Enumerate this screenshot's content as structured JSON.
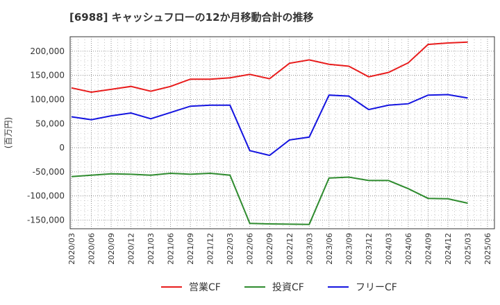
{
  "chart_data": {
    "type": "line",
    "title": "[6988]  キャッシュフローの12か月移動合計の推移",
    "ylabel": "(百万円)",
    "xlabel": "",
    "ylim": [
      -168000,
      230000
    ],
    "yticks": [
      200000,
      150000,
      100000,
      50000,
      0,
      -50000,
      -100000,
      -150000
    ],
    "ytick_labels": [
      "200,000",
      "150,000",
      "100,000",
      "50,000",
      "0",
      "-50,000",
      "-100,000",
      "-150,000"
    ],
    "categories": [
      "2020/03",
      "2020/06",
      "2020/09",
      "2020/12",
      "2021/03",
      "2021/06",
      "2021/09",
      "2021/12",
      "2022/03",
      "2022/06",
      "2022/09",
      "2022/12",
      "2023/03",
      "2023/06",
      "2023/09",
      "2023/12",
      "2024/03",
      "2024/06",
      "2024/09",
      "2024/12",
      "2025/03",
      "2025/06"
    ],
    "grid": true,
    "legend_position": "bottom-center",
    "series": [
      {
        "name": "営業CF",
        "color": "#e81c1c",
        "values": [
          124000,
          115000,
          121000,
          127000,
          117000,
          127000,
          142000,
          142000,
          145000,
          152000,
          143000,
          175000,
          182000,
          173000,
          169000,
          147000,
          156000,
          176000,
          214000,
          217000,
          219000,
          null
        ]
      },
      {
        "name": "投資CF",
        "color": "#2e8b2e",
        "values": [
          -60000,
          -57000,
          -54000,
          -55000,
          -57000,
          -53000,
          -55000,
          -53000,
          -57000,
          -157000,
          -158000,
          -158500,
          -159000,
          -63000,
          -61000,
          -68000,
          -68000,
          -85000,
          -105000,
          -106000,
          -115000,
          null
        ]
      },
      {
        "name": "フリーCF",
        "color": "#1414e0",
        "values": [
          64000,
          58000,
          66000,
          72000,
          60000,
          73000,
          86000,
          88000,
          88000,
          -6000,
          -16000,
          16000,
          22000,
          109000,
          107000,
          79000,
          88000,
          91000,
          109000,
          110000,
          103000,
          null
        ]
      }
    ]
  }
}
